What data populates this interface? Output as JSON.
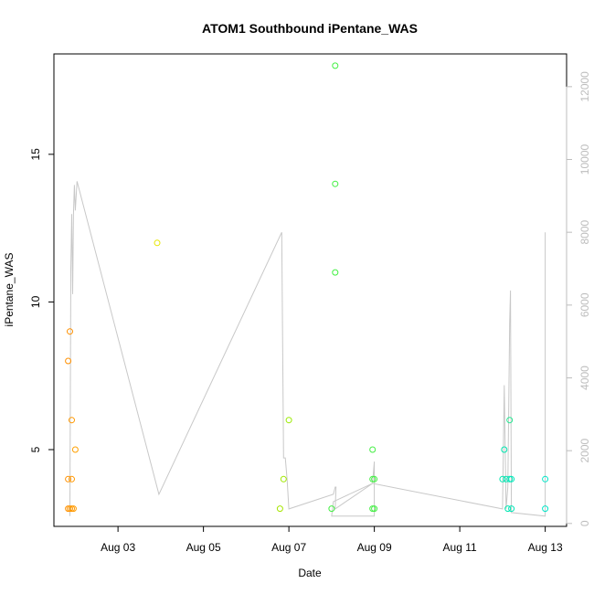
{
  "chart_data": {
    "type": "scatter",
    "title": "ATOM1 Southbound iPentane_WAS",
    "xlabel": "Date",
    "ylabel": "iPentane_WAS",
    "xlim": [
      "2021-08-01 12:00",
      "2021-08-13 12:00"
    ],
    "ylim": [
      2.4,
      18.4
    ],
    "y2lim": [
      -80,
      12900
    ],
    "x_tick_labels": [
      "Aug 03",
      "Aug 05",
      "Aug 07",
      "Aug 09",
      "Aug 11",
      "Aug 13"
    ],
    "x_ticks": [
      "2021-08-03",
      "2021-08-05",
      "2021-08-07",
      "2021-08-09",
      "2021-08-11",
      "2021-08-13"
    ],
    "y_ticks": [
      5,
      10,
      15
    ],
    "y_tick_labels": [
      "5",
      "10",
      "15"
    ],
    "y2_ticks": [
      0,
      2000,
      4000,
      6000,
      8000,
      10000,
      12000
    ],
    "y2_tick_labels": [
      "0",
      "2000",
      "4000",
      "6000",
      "8000",
      "10000",
      "12000"
    ],
    "grid": false,
    "colors": {
      "series_line": "#c8c8c8",
      "right_axis": "#bdbdbd",
      "point_palette": [
        "#ff8c00",
        "#ffb000",
        "#e8e800",
        "#a0f000",
        "#3cf040",
        "#20e890",
        "#00e8c8"
      ]
    },
    "points": [
      {
        "x": "2021-08-01 21:00",
        "y": 9,
        "color": "#ff9000"
      },
      {
        "x": "2021-08-01 20:00",
        "y": 8,
        "color": "#ff9000"
      },
      {
        "x": "2021-08-01 22:00",
        "y": 6,
        "color": "#ff9800"
      },
      {
        "x": "2021-08-02 00:00",
        "y": 5,
        "color": "#ffa000"
      },
      {
        "x": "2021-08-01 20:00",
        "y": 4,
        "color": "#ff9000"
      },
      {
        "x": "2021-08-01 22:00",
        "y": 4,
        "color": "#ff9800"
      },
      {
        "x": "2021-08-01 20:00",
        "y": 3,
        "color": "#ff9000"
      },
      {
        "x": "2021-08-01 21:00",
        "y": 3,
        "color": "#ff9400"
      },
      {
        "x": "2021-08-01 22:00",
        "y": 3,
        "color": "#ff9800"
      },
      {
        "x": "2021-08-01 23:00",
        "y": 3,
        "color": "#ff9c00"
      },
      {
        "x": "2021-08-03 22:00",
        "y": 12,
        "color": "#e6e600"
      },
      {
        "x": "2021-08-06 19:00",
        "y": 3,
        "color": "#a6e600"
      },
      {
        "x": "2021-08-06 21:00",
        "y": 4,
        "color": "#a0e800"
      },
      {
        "x": "2021-08-07 00:00",
        "y": 6,
        "color": "#9aea00"
      },
      {
        "x": "2021-08-08 02:00",
        "y": 18,
        "color": "#40f040"
      },
      {
        "x": "2021-08-08 02:00",
        "y": 14,
        "color": "#40f040"
      },
      {
        "x": "2021-08-08 02:00",
        "y": 11,
        "color": "#40f040"
      },
      {
        "x": "2021-08-08 00:00",
        "y": 3,
        "color": "#40f040"
      },
      {
        "x": "2021-08-08 23:00",
        "y": 5,
        "color": "#44ee44"
      },
      {
        "x": "2021-08-08 23:00",
        "y": 4,
        "color": "#44ee44"
      },
      {
        "x": "2021-08-09 00:00",
        "y": 4,
        "color": "#44ee44"
      },
      {
        "x": "2021-08-08 23:00",
        "y": 3,
        "color": "#44ee44"
      },
      {
        "x": "2021-08-09 00:00",
        "y": 3,
        "color": "#44ee44"
      },
      {
        "x": "2021-08-12 01:00",
        "y": 5,
        "color": "#00e6b0"
      },
      {
        "x": "2021-08-12 00:00",
        "y": 4,
        "color": "#00e6b0"
      },
      {
        "x": "2021-08-12 02:00",
        "y": 4,
        "color": "#00e6b0"
      },
      {
        "x": "2021-08-12 03:00",
        "y": 3,
        "color": "#00e6b0"
      },
      {
        "x": "2021-08-12 04:00",
        "y": 6,
        "color": "#20e890"
      },
      {
        "x": "2021-08-12 04:00",
        "y": 4,
        "color": "#00e6b8"
      },
      {
        "x": "2021-08-12 05:00",
        "y": 4,
        "color": "#00e6b8"
      },
      {
        "x": "2021-08-12 05:00",
        "y": 3,
        "color": "#00e6b8"
      },
      {
        "x": "2021-08-13 00:00",
        "y": 4,
        "color": "#00e6c8"
      },
      {
        "x": "2021-08-13 00:00",
        "y": 3,
        "color": "#00e6c8"
      }
    ],
    "line_series": [
      [
        "2021-08-01 21:00",
        200
      ],
      [
        "2021-08-01 21:30",
        7000
      ],
      [
        "2021-08-01 22:00",
        8500
      ],
      [
        "2021-08-01 22:30",
        6300
      ],
      [
        "2021-08-01 23:00",
        8500
      ],
      [
        "2021-08-01 23:30",
        9300
      ],
      [
        "2021-08-02 00:00",
        8600
      ],
      [
        "2021-08-02 01:00",
        9400
      ],
      [
        "2021-08-03 23:00",
        800
      ],
      [
        "2021-08-06 20:00",
        8000
      ],
      [
        "2021-08-06 21:00",
        1800
      ],
      [
        "2021-08-06 22:00",
        1800
      ],
      [
        "2021-08-06 23:00",
        1200
      ],
      [
        "2021-08-07 00:00",
        400
      ],
      [
        "2021-08-08 01:00",
        800
      ],
      [
        "2021-08-08 02:00",
        1000
      ],
      [
        "2021-08-08 02:30",
        1000
      ],
      [
        "2021-08-08 02:00",
        400
      ],
      [
        "2021-08-08 23:00",
        1100
      ],
      [
        "2021-08-09 00:00",
        1700
      ],
      [
        "2021-08-09 00:00",
        200
      ],
      [
        "2021-08-08 00:00",
        200
      ],
      [
        "2021-08-08 01:00",
        600
      ],
      [
        "2021-08-08 23:00",
        1100
      ],
      [
        "2021-08-12 00:00",
        400
      ],
      [
        "2021-08-12 01:00",
        3800
      ],
      [
        "2021-08-12 02:00",
        400
      ],
      [
        "2021-08-12 03:00",
        1000
      ],
      [
        "2021-08-12 04:00",
        5500
      ],
      [
        "2021-08-12 04:30",
        6400
      ],
      [
        "2021-08-12 05:00",
        300
      ],
      [
        "2021-08-13 00:00",
        200
      ],
      [
        "2021-08-13 00:00",
        8000
      ]
    ]
  }
}
